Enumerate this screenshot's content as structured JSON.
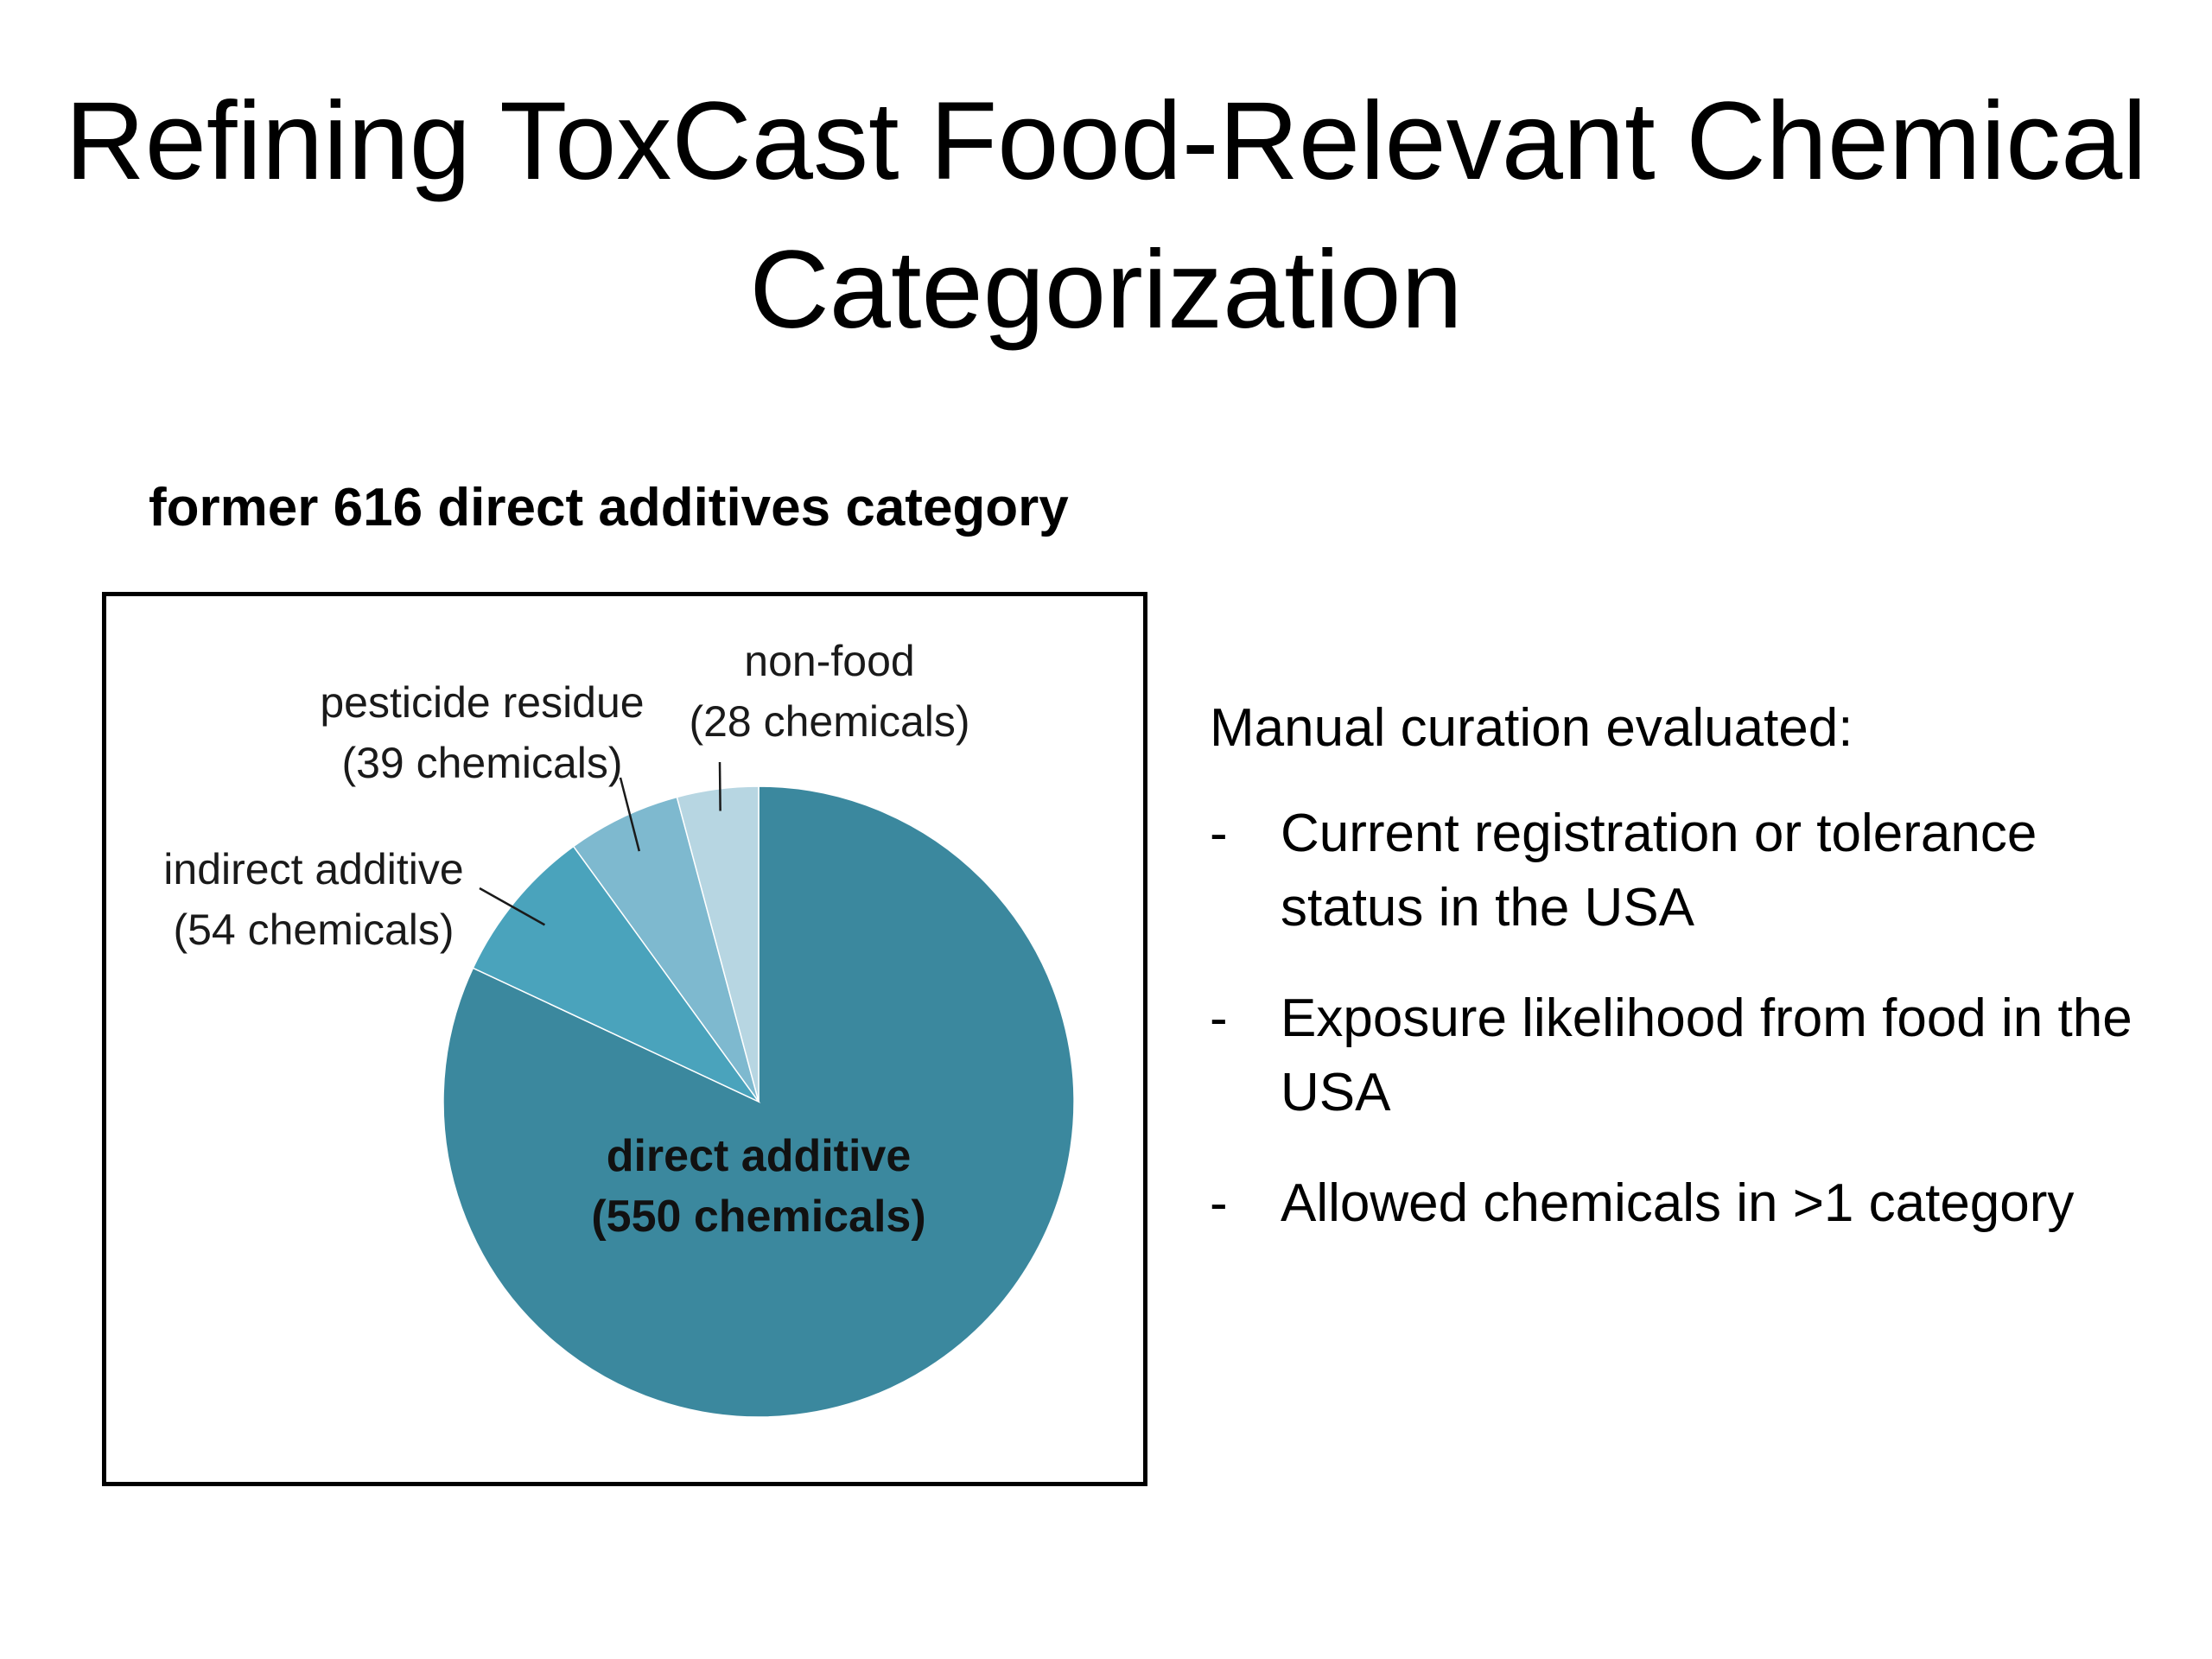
{
  "slide": {
    "title_line1": "Refining ToxCast Food-Relevant Chemical",
    "title_line2": "Categorization"
  },
  "chart_data": {
    "type": "pie",
    "title": "former 616 direct additives category",
    "slices": [
      {
        "name": "direct additive",
        "detail": "(550 chemicals)",
        "value": 550,
        "color": "#3b889e"
      },
      {
        "name": "indirect additive",
        "detail": "(54 chemicals)",
        "value": 54,
        "color": "#4aa3bc"
      },
      {
        "name": "pesticide residue",
        "detail": "(39 chemicals)",
        "value": 39,
        "color": "#7eb9cf"
      },
      {
        "name": "non-food",
        "detail": "(28 chemicals)",
        "value": 28,
        "color": "#b7d6e2"
      }
    ]
  },
  "curation": {
    "heading": "Manual curation evaluated:",
    "dash": "-",
    "items": [
      "Current registration or tolerance status in the USA",
      "Exposure likelihood from food in the USA",
      "Allowed chemicals in >1 category"
    ]
  }
}
